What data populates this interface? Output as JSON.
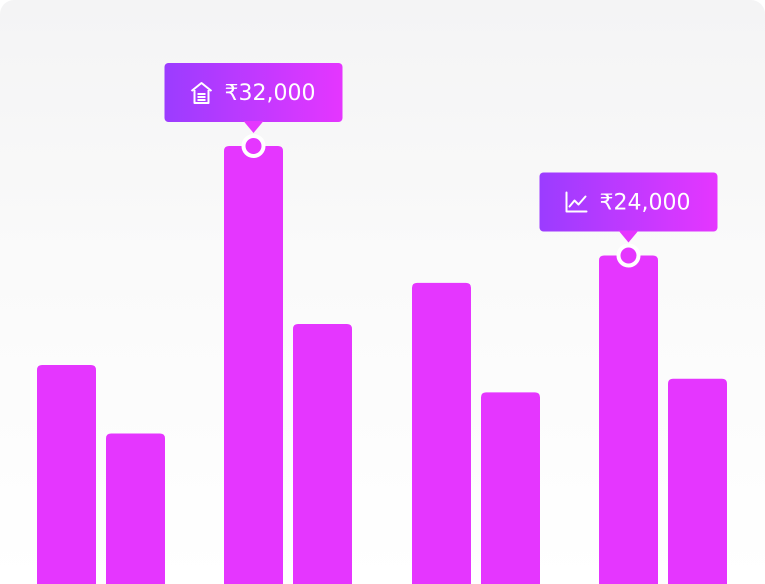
{
  "chart_data": {
    "type": "bar",
    "bar_color": "#e536ff",
    "tooltip_gradient": [
      "#9b3cff",
      "#e536ff"
    ],
    "bars": [
      {
        "id": "b1",
        "value": 16000
      },
      {
        "id": "b2",
        "value": 11000
      },
      {
        "id": "b3",
        "value": 32000
      },
      {
        "id": "b4",
        "value": 19000
      },
      {
        "id": "b5",
        "value": 22000
      },
      {
        "id": "b6",
        "value": 14000
      },
      {
        "id": "b7",
        "value": 24000
      },
      {
        "id": "b8",
        "value": 15000
      }
    ],
    "highlights": [
      {
        "bar": 2,
        "icon": "home-icon",
        "label": "₹32,000",
        "value": 32000
      },
      {
        "bar": 6,
        "icon": "trend-chart-icon",
        "label": "₹24,000",
        "value": 24000
      }
    ]
  }
}
